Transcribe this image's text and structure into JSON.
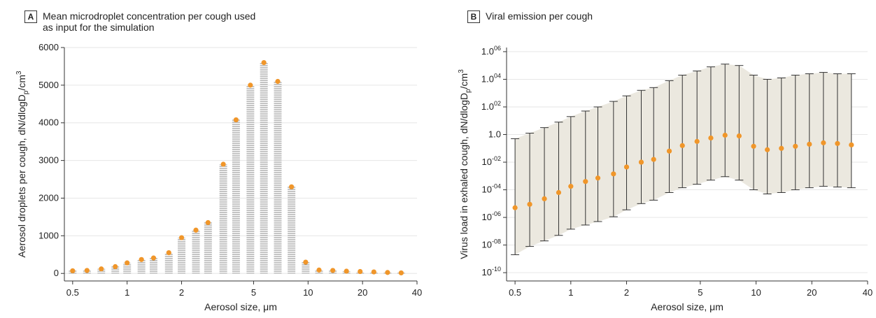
{
  "panels": [
    {
      "letter": "A",
      "title": "Mean microdroplet concentration per cough used\nas input for the simulation"
    },
    {
      "letter": "B",
      "title": "Viral emission per cough"
    }
  ],
  "colors": {
    "marker": "#f0962a",
    "bar_hatch": "#8a8a8a",
    "band": "#ebe8df",
    "errorbar": "#333333",
    "grid": "#e6e6e6"
  },
  "chart_data": [
    {
      "type": "bar",
      "xscale": "log",
      "xlabel": "Aerosol size, μm",
      "ylabel": "Aerosol droplets per cough, dN/dlogD",
      "ylabel_sub": "p",
      "ylabel_unit": "/cm",
      "ylabel_sup": "3",
      "xlim": [
        0.45,
        40
      ],
      "ylim": [
        -200,
        6000
      ],
      "xticks": [
        0.5,
        1,
        2,
        5,
        10,
        20,
        40
      ],
      "xtick_labels": [
        "0.5",
        "1",
        "2",
        "5",
        "10",
        "20",
        "40"
      ],
      "yticks": [
        0,
        1000,
        2000,
        3000,
        4000,
        5000,
        6000
      ],
      "ytick_labels": [
        "0",
        "1000",
        "2000",
        "3000",
        "4000",
        "5000",
        "6000"
      ],
      "grid": "horizontal",
      "x": [
        0.5,
        0.6,
        0.72,
        0.86,
        1.0,
        1.2,
        1.4,
        1.7,
        2.0,
        2.4,
        2.8,
        3.4,
        4.0,
        4.8,
        5.7,
        6.8,
        8.1,
        9.7,
        11.5,
        13.7,
        16.3,
        19.4,
        23.1,
        27.5,
        32.7
      ],
      "values": [
        70,
        80,
        120,
        180,
        280,
        370,
        410,
        550,
        950,
        1150,
        1350,
        2900,
        4080,
        5000,
        5600,
        5100,
        2300,
        300,
        90,
        80,
        60,
        50,
        40,
        25,
        15
      ]
    },
    {
      "type": "scatter",
      "xscale": "log",
      "yscale": "log",
      "xlabel": "Aerosol size, μm",
      "ylabel": "Virus load in exhaled cough, dN/dlogD",
      "ylabel_sub": "p",
      "ylabel_unit": "/cm",
      "ylabel_sup": "3",
      "xlim": [
        0.45,
        40
      ],
      "ylim_exp": [
        -10.6,
        6.3
      ],
      "xticks": [
        0.5,
        1,
        2,
        5,
        10,
        20,
        40
      ],
      "xtick_labels": [
        "0.5",
        "1",
        "2",
        "5",
        "10",
        "20",
        "40"
      ],
      "yticks_exp": [
        6,
        4,
        2,
        0,
        -2,
        -4,
        -6,
        -8,
        -10
      ],
      "ytick_base": [
        "1.0",
        "1.0",
        "1.0",
        "1.0",
        "10",
        "10",
        "10",
        "10",
        "10"
      ],
      "ytick_sup": [
        "06",
        "04",
        "02",
        "",
        "-02",
        "-04",
        "-06",
        "-08",
        "-10"
      ],
      "x": [
        0.5,
        0.6,
        0.72,
        0.86,
        1.0,
        1.2,
        1.4,
        1.7,
        2.0,
        2.4,
        2.8,
        3.4,
        4.0,
        4.8,
        5.7,
        6.8,
        8.1,
        9.7,
        11.5,
        13.7,
        16.3,
        19.4,
        23.1,
        27.5,
        32.7
      ],
      "y_exp": [
        -5.3,
        -5.05,
        -4.65,
        -4.2,
        -3.75,
        -3.4,
        -3.15,
        -2.85,
        -2.35,
        -2.0,
        -1.8,
        -1.2,
        -0.8,
        -0.5,
        -0.25,
        -0.05,
        -0.1,
        -0.85,
        -1.1,
        -1.0,
        -0.85,
        -0.7,
        -0.6,
        -0.65,
        -0.75
      ],
      "upper_exp": [
        -0.3,
        0.1,
        0.5,
        0.9,
        1.3,
        1.7,
        2.0,
        2.4,
        2.8,
        3.2,
        3.4,
        3.9,
        4.3,
        4.6,
        4.9,
        5.1,
        5.0,
        4.3,
        4.0,
        4.1,
        4.3,
        4.4,
        4.5,
        4.4,
        4.4
      ],
      "lower_exp": [
        -8.7,
        -8.1,
        -7.7,
        -7.3,
        -6.85,
        -6.55,
        -6.3,
        -5.95,
        -5.45,
        -5.0,
        -4.75,
        -4.2,
        -3.85,
        -3.6,
        -3.3,
        -3.05,
        -3.3,
        -4.0,
        -4.3,
        -4.2,
        -4.0,
        -3.85,
        -3.75,
        -3.8,
        -3.85
      ]
    }
  ]
}
